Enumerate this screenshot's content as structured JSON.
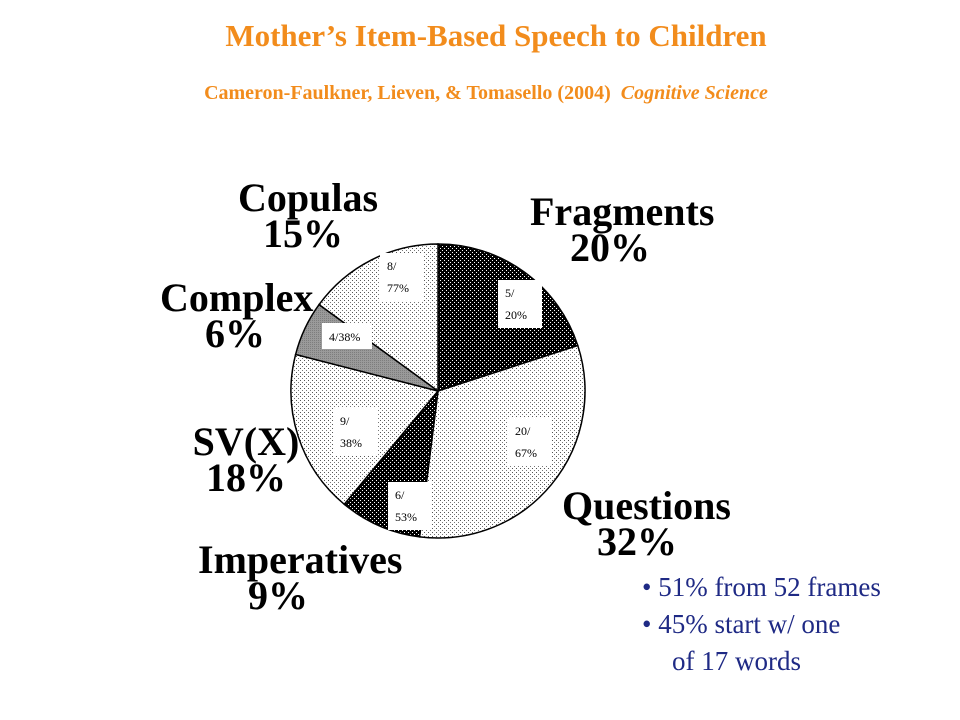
{
  "title": "Mother’s Item-Based  Speech to Children",
  "subtitle": {
    "authors": "Cameron-Faulkner, Lieven, & Tomasello (2004)",
    "journal": "Cognitive Science"
  },
  "chart_data": {
    "type": "pie",
    "slices": [
      {
        "label": "Fragments",
        "percent": "20%",
        "value": 20,
        "box_line1": "5/",
        "box_line2": "20%",
        "fill": "dark-dots"
      },
      {
        "label": "Questions",
        "percent": "32%",
        "value": 32,
        "box_line1": "20/",
        "box_line2": "67%",
        "fill": "light-dots"
      },
      {
        "label": "Imperatives",
        "percent": "9%",
        "value": 9,
        "box_line1": "6/",
        "box_line2": "53%",
        "fill": "dark-dots"
      },
      {
        "label": "SV(X)",
        "percent": "18%",
        "value": 18,
        "box_line1": "9/",
        "box_line2": "38%",
        "fill": "light-dots"
      },
      {
        "label": "Complex",
        "percent": "6%",
        "value": 6,
        "box_line1": "4/38%",
        "box_line2": "",
        "fill": "gray"
      },
      {
        "label": "Copulas",
        "percent": "15%",
        "value": 15,
        "box_line1": "8/",
        "box_line2": "77%",
        "fill": "light-dots"
      }
    ]
  },
  "bullets": {
    "line1": "• 51% from 52 frames",
    "line2": "• 45% start w/ one",
    "line3": "of 17 words"
  },
  "colors": {
    "title": "#f28c1c",
    "bullets": "#1f2a85"
  }
}
